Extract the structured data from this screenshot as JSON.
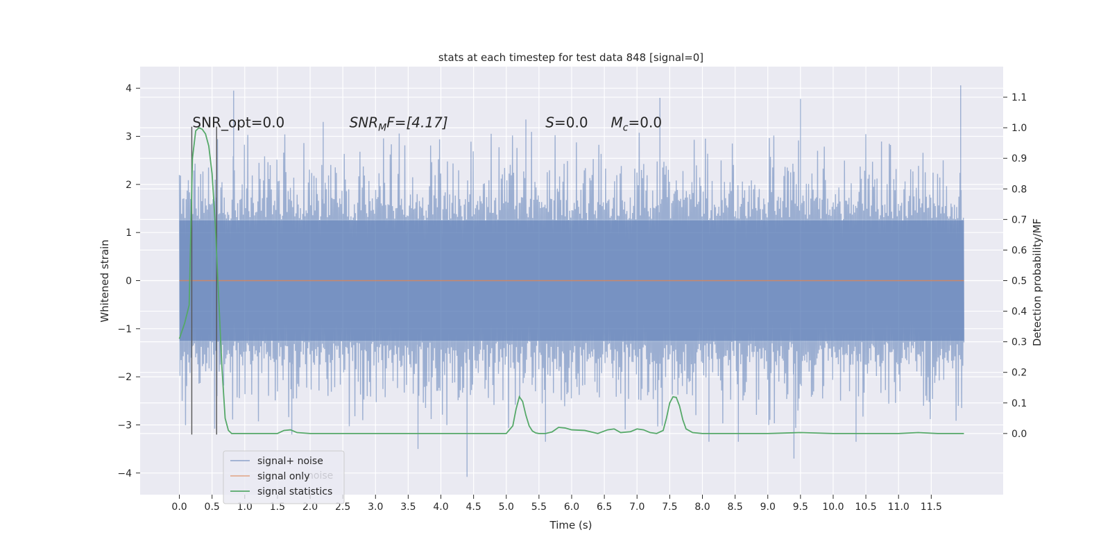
{
  "chart_data": {
    "type": "line",
    "title": "stats at each timestep for test data 848 [signal=0]",
    "xlabel": "Time (s)",
    "ylabel": "Whitened strain",
    "y2label": "Detection probability/MF",
    "xlim": [
      -0.6,
      12.6
    ],
    "ylim": [
      -4.45,
      4.45
    ],
    "y2lim": [
      -0.2,
      1.2
    ],
    "x_ticks": [
      0.0,
      0.5,
      1.0,
      1.5,
      2.0,
      2.5,
      3.0,
      3.5,
      4.0,
      4.5,
      5.0,
      5.5,
      6.0,
      6.5,
      7.0,
      7.5,
      8.0,
      8.5,
      9.0,
      9.5,
      10.0,
      10.5,
      11.0,
      11.5
    ],
    "x_tick_labels": [
      "0.0",
      "0.5",
      "1.0",
      "1.5",
      "2.0",
      "2.5",
      "3.0",
      "3.5",
      "4.0",
      "4.5",
      "5.0",
      "5.5",
      "6.0",
      "6.5",
      "7.0",
      "7.5",
      "8.0",
      "8.5",
      "9.0",
      "9.5",
      "10.0",
      "10.5",
      "11.0",
      "11.5"
    ],
    "y_ticks": [
      -4,
      -3,
      -2,
      -1,
      0,
      1,
      2,
      3,
      4
    ],
    "y_tick_labels": [
      "−4",
      "−3",
      "−2",
      "−1",
      "0",
      "1",
      "2",
      "3",
      "4"
    ],
    "y2_ticks": [
      0.0,
      0.1,
      0.2,
      0.3,
      0.4,
      0.5,
      0.6,
      0.7,
      0.8,
      0.9,
      1.0,
      1.1
    ],
    "y2_tick_labels": [
      "0.0",
      "0.1",
      "0.2",
      "0.3",
      "0.4",
      "0.5",
      "0.6",
      "0.7",
      "0.8",
      "0.9",
      "1.0",
      "1.1"
    ],
    "grid": true,
    "legend_position": "lower-left",
    "series": [
      {
        "name": "signal+ noise",
        "color": "#4c72b0",
        "style": "dense noise trace",
        "x_range": [
          0.0,
          12.0
        ],
        "core_range": [
          -1.25,
          1.25
        ],
        "typical_peak_range": [
          -2.5,
          2.5
        ],
        "notable_peaks": [
          {
            "x": 0.83,
            "y": 3.95
          },
          {
            "x": 1.72,
            "y": -3.2
          },
          {
            "x": 2.2,
            "y": 3.3
          },
          {
            "x": 3.65,
            "y": -3.5
          },
          {
            "x": 4.4,
            "y": -4.08
          },
          {
            "x": 5.3,
            "y": 3.35
          },
          {
            "x": 5.6,
            "y": -3.35
          },
          {
            "x": 7.35,
            "y": 3.8
          },
          {
            "x": 8.1,
            "y": -3.35
          },
          {
            "x": 8.55,
            "y": -3.35
          },
          {
            "x": 9.4,
            "y": -3.7
          },
          {
            "x": 9.5,
            "y": 3.78
          },
          {
            "x": 10.35,
            "y": -3.35
          },
          {
            "x": 11.95,
            "y": 4.06
          }
        ]
      },
      {
        "name": "signal only",
        "color": "#dd8452",
        "x": [
          0.0,
          12.0
        ],
        "y": [
          0.0,
          0.0
        ]
      },
      {
        "name": "signal statistics",
        "color": "#55a868",
        "axis": "right",
        "x": [
          0.0,
          0.08,
          0.15,
          0.2,
          0.25,
          0.3,
          0.35,
          0.4,
          0.45,
          0.5,
          0.55,
          0.6,
          0.65,
          0.7,
          0.75,
          0.8,
          1.0,
          1.5,
          1.6,
          1.7,
          1.8,
          2.0,
          3.0,
          4.0,
          5.0,
          5.1,
          5.15,
          5.2,
          5.25,
          5.3,
          5.35,
          5.4,
          5.45,
          5.5,
          5.6,
          5.7,
          5.8,
          5.9,
          6.0,
          6.2,
          6.4,
          6.55,
          6.65,
          6.75,
          6.9,
          7.0,
          7.1,
          7.2,
          7.3,
          7.4,
          7.45,
          7.5,
          7.55,
          7.6,
          7.65,
          7.7,
          7.75,
          7.85,
          8.0,
          8.5,
          9.0,
          9.5,
          10.0,
          11.0,
          11.3,
          11.6,
          12.0
        ],
        "y": [
          0.31,
          0.36,
          0.42,
          0.9,
          0.99,
          1.0,
          0.995,
          0.98,
          0.94,
          0.85,
          0.68,
          0.45,
          0.22,
          0.05,
          0.01,
          0.0,
          0.0,
          0.0,
          0.01,
          0.012,
          0.003,
          0.0,
          0.0,
          0.0,
          0.0,
          0.025,
          0.08,
          0.12,
          0.105,
          0.06,
          0.025,
          0.008,
          0.002,
          0.0,
          0.0,
          0.005,
          0.02,
          0.018,
          0.012,
          0.01,
          0.0,
          0.012,
          0.015,
          0.003,
          0.006,
          0.015,
          0.012,
          0.003,
          0.0,
          0.01,
          0.05,
          0.1,
          0.12,
          0.118,
          0.09,
          0.045,
          0.015,
          0.003,
          0.0,
          0.0,
          0.0,
          0.003,
          0.0,
          0.0,
          0.003,
          0.0,
          0.0
        ]
      }
    ],
    "vertical_lines": [
      {
        "x": 0.19,
        "y_range": [
          -3.2,
          3.2
        ],
        "color": "#555555"
      },
      {
        "x": 0.57,
        "y_range": [
          -3.2,
          3.2
        ],
        "color": "#555555"
      }
    ],
    "annotations": [
      {
        "text": "SNR_opt=0.0",
        "x": 0.2,
        "y": 3.3
      },
      {
        "text": "SNR",
        "sub": "M",
        "tail": "F=[4.17]",
        "italic": true,
        "x": 2.6,
        "y": 3.3
      },
      {
        "text": "S",
        "tail": "=0.0",
        "italic": true,
        "x": 5.6,
        "y": 3.3
      },
      {
        "text": "M",
        "sub": "c",
        "tail": "=0.0",
        "italic": true,
        "x": 6.6,
        "y": 3.3
      }
    ],
    "legend": [
      {
        "label": "signal+ noise",
        "color": "#4c72b0"
      },
      {
        "label": "signal only",
        "color": "#dd8452"
      },
      {
        "label": "signal statistics",
        "color": "#55a868"
      }
    ],
    "legend_ghost_text": "noise",
    "colors": {
      "plot_bg": "#eaeaf2",
      "grid": "#ffffff",
      "noise": "#4c72b0",
      "signal": "#dd8452",
      "stats": "#55a868",
      "marker_lines": "#555555"
    }
  }
}
